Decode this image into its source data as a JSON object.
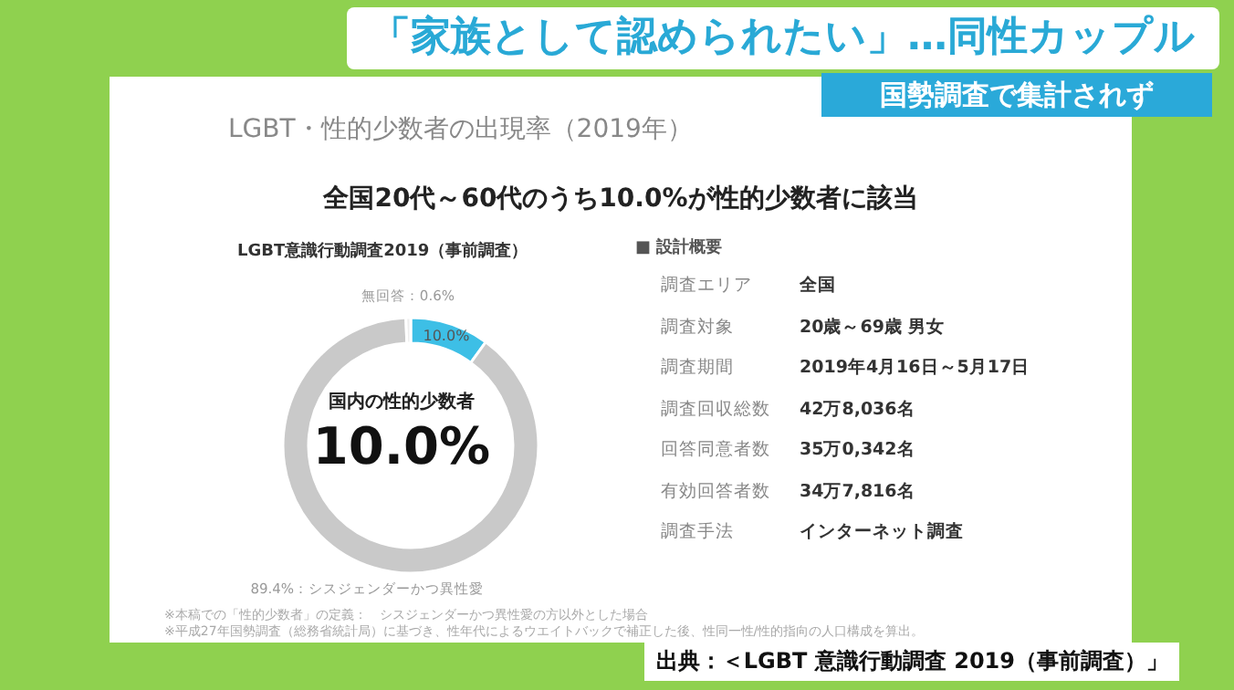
{
  "chart_data": {
    "type": "donut",
    "title": "LGBT・性的少数者の出現率（2019年）",
    "subtitle": "全国20代～60代のうち10.0%が性的少数者に該当",
    "categories": [
      null,
      null,
      null
    ],
    "values": [
      10.0,
      89.4,
      0.6
    ],
    "colors": [
      "#3dbfe6",
      "#c9c9c9",
      "#eeeeee"
    ],
    "value_labels": [
      "10.0%",
      "89.4%：シスジェンダーかつ異性愛",
      "無回答：0.6%"
    ],
    "annotations": [
      "「家族として認められたい」…同性カップル",
      "国勢調査で集計されず",
      "LGBT意識行動調査2019（事前調査）",
      "国内の性的少数者",
      "10.0%",
      "■ 設計概要",
      "調査エリア",
      "全国",
      "調査対象",
      "20歳～69歳 男女",
      "調査期間",
      "2019年4月16日～5月17日",
      "調査回収総数",
      "42万8,036名",
      "回答同意者数",
      "35万0,342名",
      "有効回答者数",
      "34万7,816名",
      "調査手法",
      "インターネット調査",
      "※本稿での「性的少数者」の定義：　シスジェンダーかつ異性愛の方以外とした場合",
      "※平成27年国勢調査（総務省統計局）に基づき、性年代によるウエイトバックで補正した後、性同一性/性的指向の人口構成を算出。",
      "出典：＜LGBT 意識行動調査 2019（事前調査）」"
    ]
  }
}
